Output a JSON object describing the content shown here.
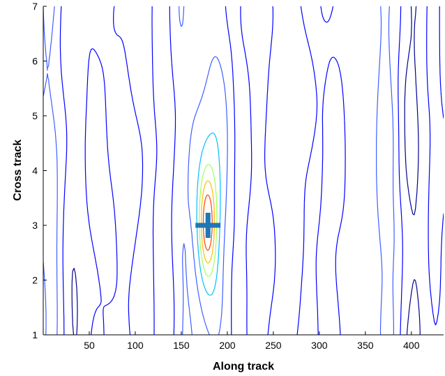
{
  "chart_data": {
    "type": "contour",
    "title": "",
    "xlabel": "Along track",
    "ylabel": "Cross track",
    "xlim": [
      0,
      435
    ],
    "ylim": [
      1,
      7
    ],
    "xticks": [
      50,
      100,
      150,
      200,
      250,
      300,
      350,
      400
    ],
    "yticks": [
      1,
      2,
      3,
      4,
      5,
      6,
      7
    ],
    "grid": false,
    "legend": "none",
    "colormap": "jet",
    "levels": 8,
    "marker": {
      "shape": "plus",
      "x": 179,
      "y": 3.0,
      "color": "#1f77b4"
    },
    "peak": {
      "x": 178,
      "y": 3.0
    }
  }
}
